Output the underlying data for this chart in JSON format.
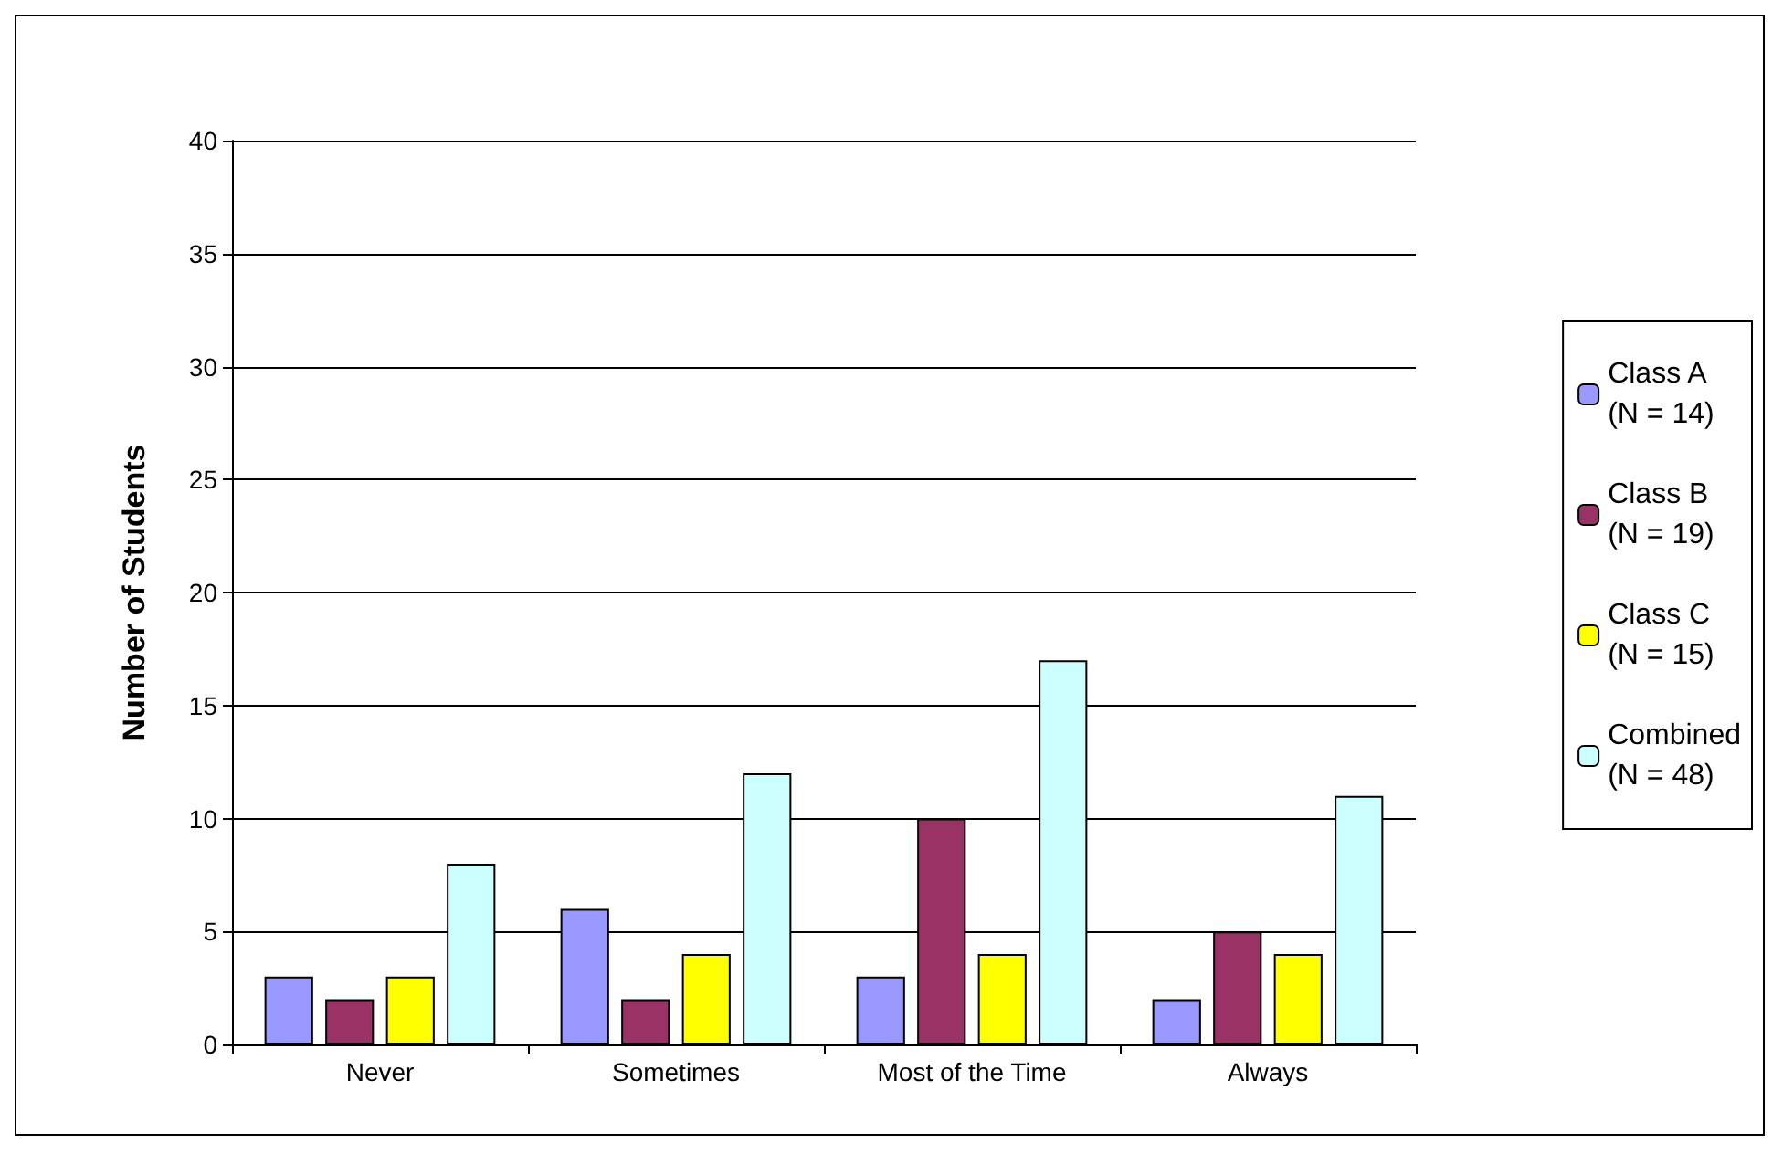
{
  "chart_data": {
    "type": "bar",
    "ylabel": "Number of Students",
    "categories": [
      "Never",
      "Sometimes",
      "Most of the Time",
      "Always"
    ],
    "series": [
      {
        "name": "Class A\n(N = 14)",
        "color": "#9999ff",
        "values": [
          3,
          6,
          3,
          2
        ]
      },
      {
        "name": "Class B\n(N = 19)",
        "color": "#993366",
        "values": [
          2,
          2,
          10,
          5
        ]
      },
      {
        "name": "Class C\n(N = 15)",
        "color": "#ffff00",
        "values": [
          3,
          4,
          4,
          4
        ]
      },
      {
        "name": "Combined\n(N = 48)",
        "color": "#ccffff",
        "values": [
          8,
          12,
          17,
          11
        ]
      }
    ],
    "ylim": [
      0,
      40
    ],
    "yticks": [
      0,
      5,
      10,
      15,
      20,
      25,
      30,
      35,
      40
    ],
    "grid": "y",
    "legend": "right"
  }
}
